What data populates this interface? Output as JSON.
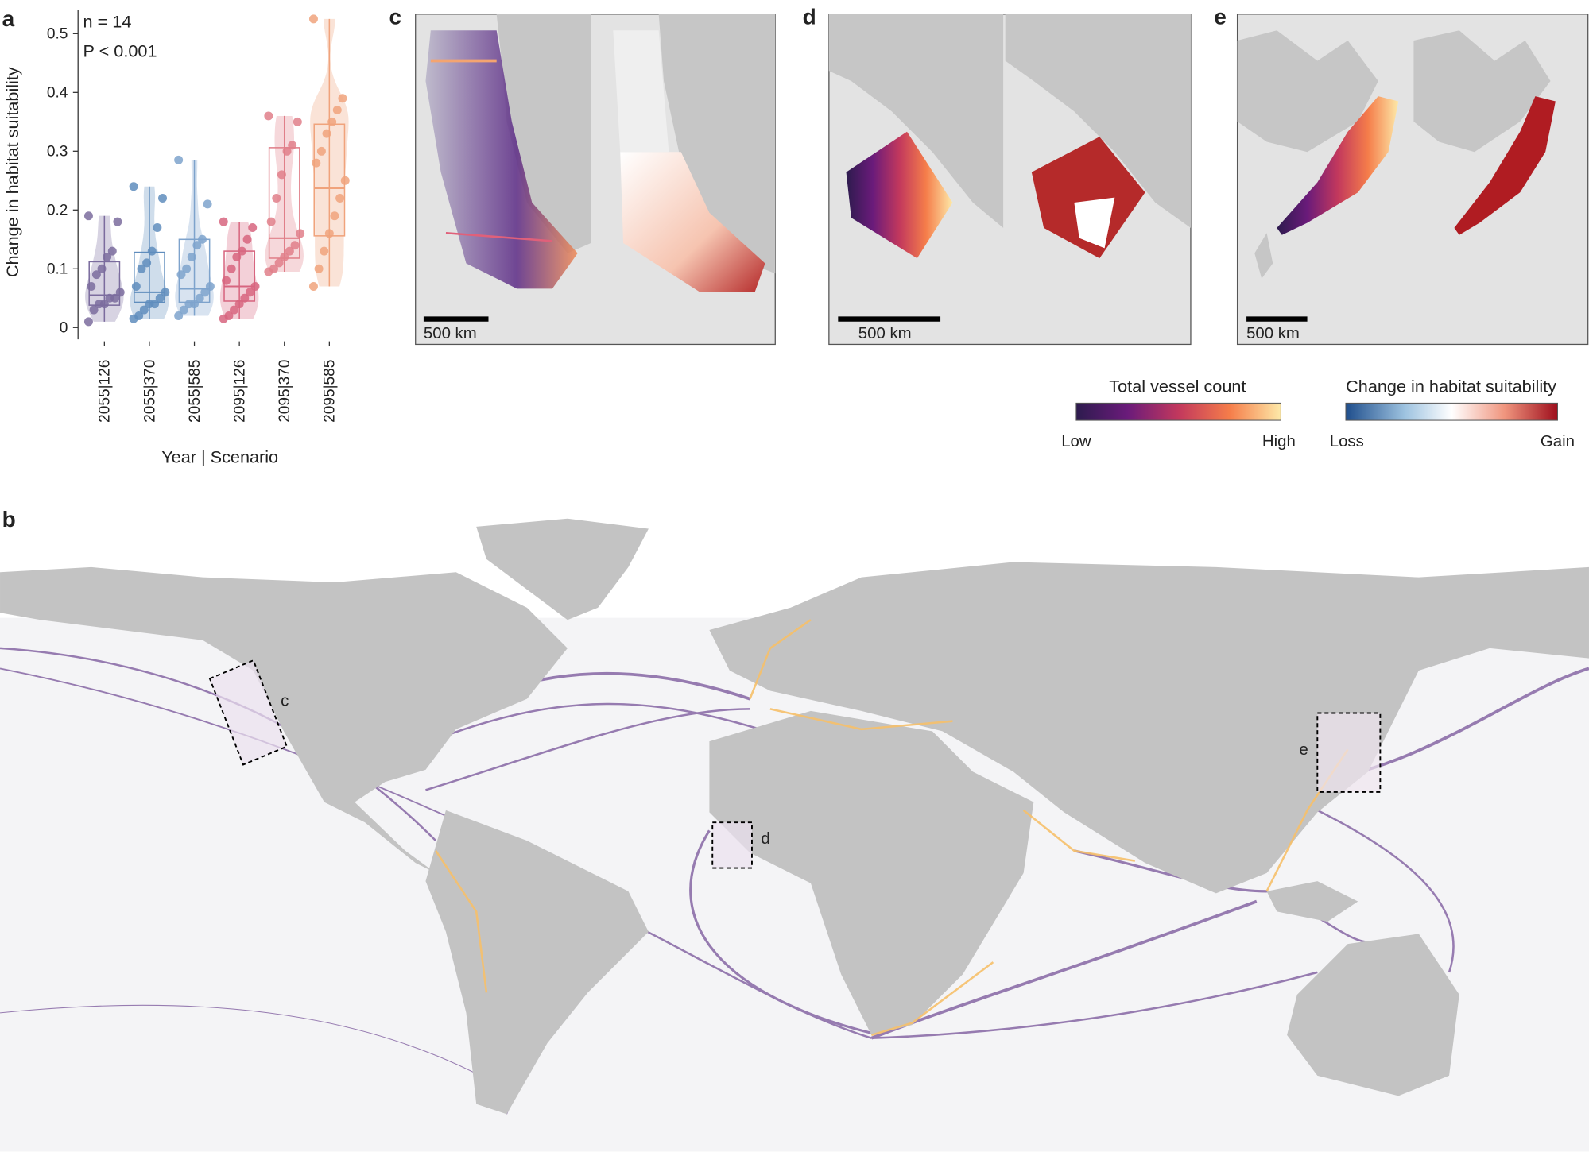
{
  "chart_data": {
    "type": "box",
    "panel_label": "a",
    "annotations": [
      "n = 14",
      "P < 0.001"
    ],
    "ylabel": "Change in habitat suitability",
    "xlabel": "Year | Scenario",
    "categories": [
      "2055|126",
      "2055|370",
      "2055|585",
      "2095|126",
      "2095|370",
      "2095|585"
    ],
    "colors": [
      "#7b6c9e",
      "#5f8dbd",
      "#7ea3cc",
      "#d7657f",
      "#e07f89",
      "#f0a37c"
    ],
    "boxes": [
      {
        "whisker_low": 0.01,
        "q1": 0.038,
        "median": 0.055,
        "q3": 0.112,
        "whisker_high": 0.19
      },
      {
        "whisker_low": 0.015,
        "q1": 0.043,
        "median": 0.06,
        "q3": 0.128,
        "whisker_high": 0.24
      },
      {
        "whisker_low": 0.02,
        "q1": 0.043,
        "median": 0.066,
        "q3": 0.15,
        "whisker_high": 0.285
      },
      {
        "whisker_low": 0.015,
        "q1": 0.045,
        "median": 0.07,
        "q3": 0.13,
        "whisker_high": 0.18
      },
      {
        "whisker_low": 0.095,
        "q1": 0.118,
        "median": 0.152,
        "q3": 0.306,
        "whisker_high": 0.36
      },
      {
        "whisker_low": 0.07,
        "q1": 0.156,
        "median": 0.237,
        "q3": 0.346,
        "whisker_high": 0.525
      }
    ],
    "points": [
      [
        0.19,
        0.18,
        0.13,
        0.12,
        0.1,
        0.09,
        0.07,
        0.06,
        0.05,
        0.05,
        0.04,
        0.04,
        0.03,
        0.01
      ],
      [
        0.24,
        0.22,
        0.17,
        0.13,
        0.11,
        0.1,
        0.07,
        0.06,
        0.05,
        0.04,
        0.04,
        0.03,
        0.02,
        0.015
      ],
      [
        0.285,
        0.21,
        0.15,
        0.14,
        0.12,
        0.1,
        0.09,
        0.07,
        0.06,
        0.05,
        0.04,
        0.04,
        0.03,
        0.02
      ],
      [
        0.18,
        0.17,
        0.15,
        0.13,
        0.12,
        0.1,
        0.08,
        0.07,
        0.06,
        0.05,
        0.04,
        0.03,
        0.02,
        0.015
      ],
      [
        0.36,
        0.35,
        0.31,
        0.3,
        0.26,
        0.22,
        0.18,
        0.16,
        0.14,
        0.13,
        0.12,
        0.11,
        0.1,
        0.095
      ],
      [
        0.525,
        0.39,
        0.37,
        0.35,
        0.33,
        0.3,
        0.28,
        0.25,
        0.22,
        0.19,
        0.16,
        0.13,
        0.1,
        0.07
      ]
    ],
    "ylim": [
      -0.02,
      0.54
    ],
    "yticks": [
      0,
      0.1,
      0.2,
      0.3,
      0.4,
      0.5
    ],
    "violin": true
  },
  "maps": {
    "c": {
      "label": "c",
      "scale_bar": "500 km"
    },
    "d": {
      "label": "d",
      "scale_bar": "500 km"
    },
    "e": {
      "label": "e",
      "scale_bar": "500 km"
    }
  },
  "legends": [
    {
      "title": "Total vessel count",
      "low": "Low",
      "high": "High"
    },
    {
      "title": "Change in habitat suitability",
      "low": "Loss",
      "high": "Gain"
    }
  ],
  "world_map": {
    "label": "b",
    "insets": [
      "c",
      "d",
      "e"
    ]
  }
}
